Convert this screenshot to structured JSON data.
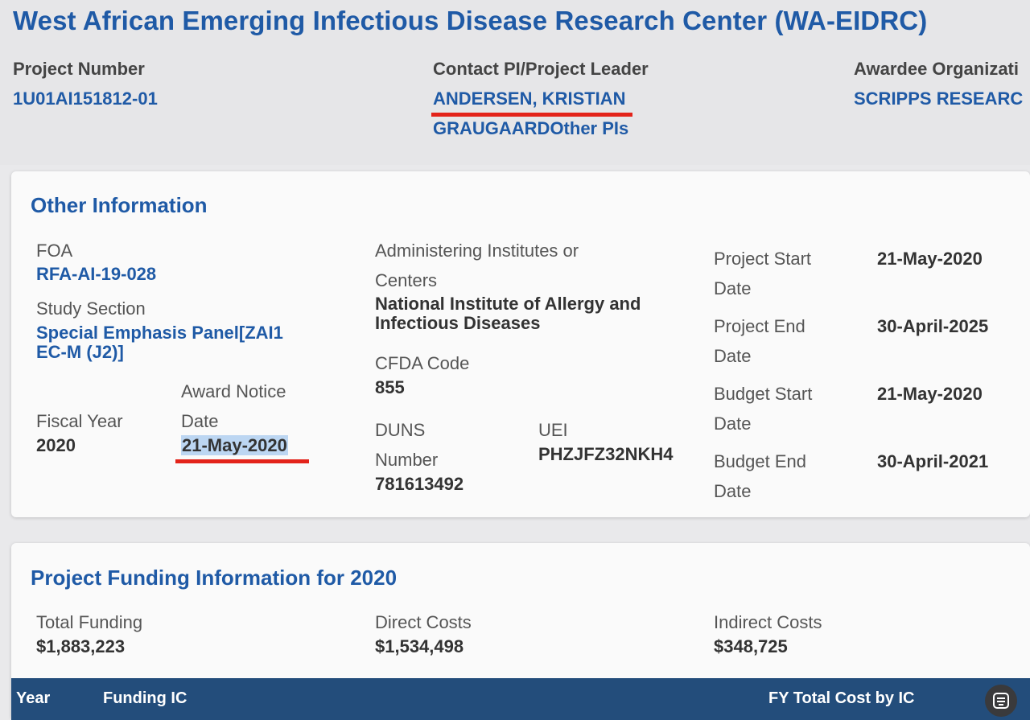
{
  "header": {
    "title": "West African Emerging Infectious Disease Research Center (WA-EIDRC)",
    "project_number_label": "Project Number",
    "project_number": "1U01AI151812-01",
    "contact_pi_label": "Contact PI/Project Leader",
    "contact_pi": "ANDERSEN, KRISTIAN",
    "other_pis": "GRAUGAARDOther PIs",
    "awardee_label": "Awardee Organizati",
    "awardee": "SCRIPPS RESEARC"
  },
  "other_info": {
    "title": "Other Information",
    "foa_label": "FOA",
    "foa": "RFA-AI-19-028",
    "study_section_label": "Study Section",
    "study_section": "Special Emphasis Panel[ZAI1 EC-M (J2)]",
    "fiscal_year_label": "Fiscal Year",
    "fiscal_year": "2020",
    "award_notice_label_1": "Award Notice",
    "award_notice_label_2": "Date",
    "award_notice_date": "21-May-2020",
    "admin_label_1": "Administering Institutes or",
    "admin_label_2": "Centers",
    "admin_value": "National Institute of Allergy and Infectious Diseases",
    "cfda_label": "CFDA Code",
    "cfda": "855",
    "duns_label_1": "DUNS",
    "duns_label_2": "Number",
    "duns": "781613492",
    "uei_label": "UEI",
    "uei": "PHZJFZ32NKH4",
    "dates": [
      {
        "label_1": "Project Start",
        "label_2": "Date",
        "value": "21-May-2020"
      },
      {
        "label_1": "Project End",
        "label_2": "Date",
        "value": "30-April-2025"
      },
      {
        "label_1": "Budget Start",
        "label_2": "Date",
        "value": "21-May-2020"
      },
      {
        "label_1": "Budget End",
        "label_2": "Date",
        "value": "30-April-2021"
      }
    ]
  },
  "funding": {
    "title": "Project Funding Information for 2020",
    "total_label": "Total Funding",
    "total": "$1,883,223",
    "direct_label": "Direct Costs",
    "direct": "$1,534,498",
    "indirect_label": "Indirect Costs",
    "indirect": "$348,725",
    "table_headers": [
      "Year",
      "Funding IC",
      "FY Total Cost by IC"
    ]
  },
  "icons": {
    "feedback": "feedback-icon"
  },
  "colors": {
    "link_blue": "#1f5aa6",
    "table_header": "#234d7b",
    "highlight": "#e3231a"
  }
}
